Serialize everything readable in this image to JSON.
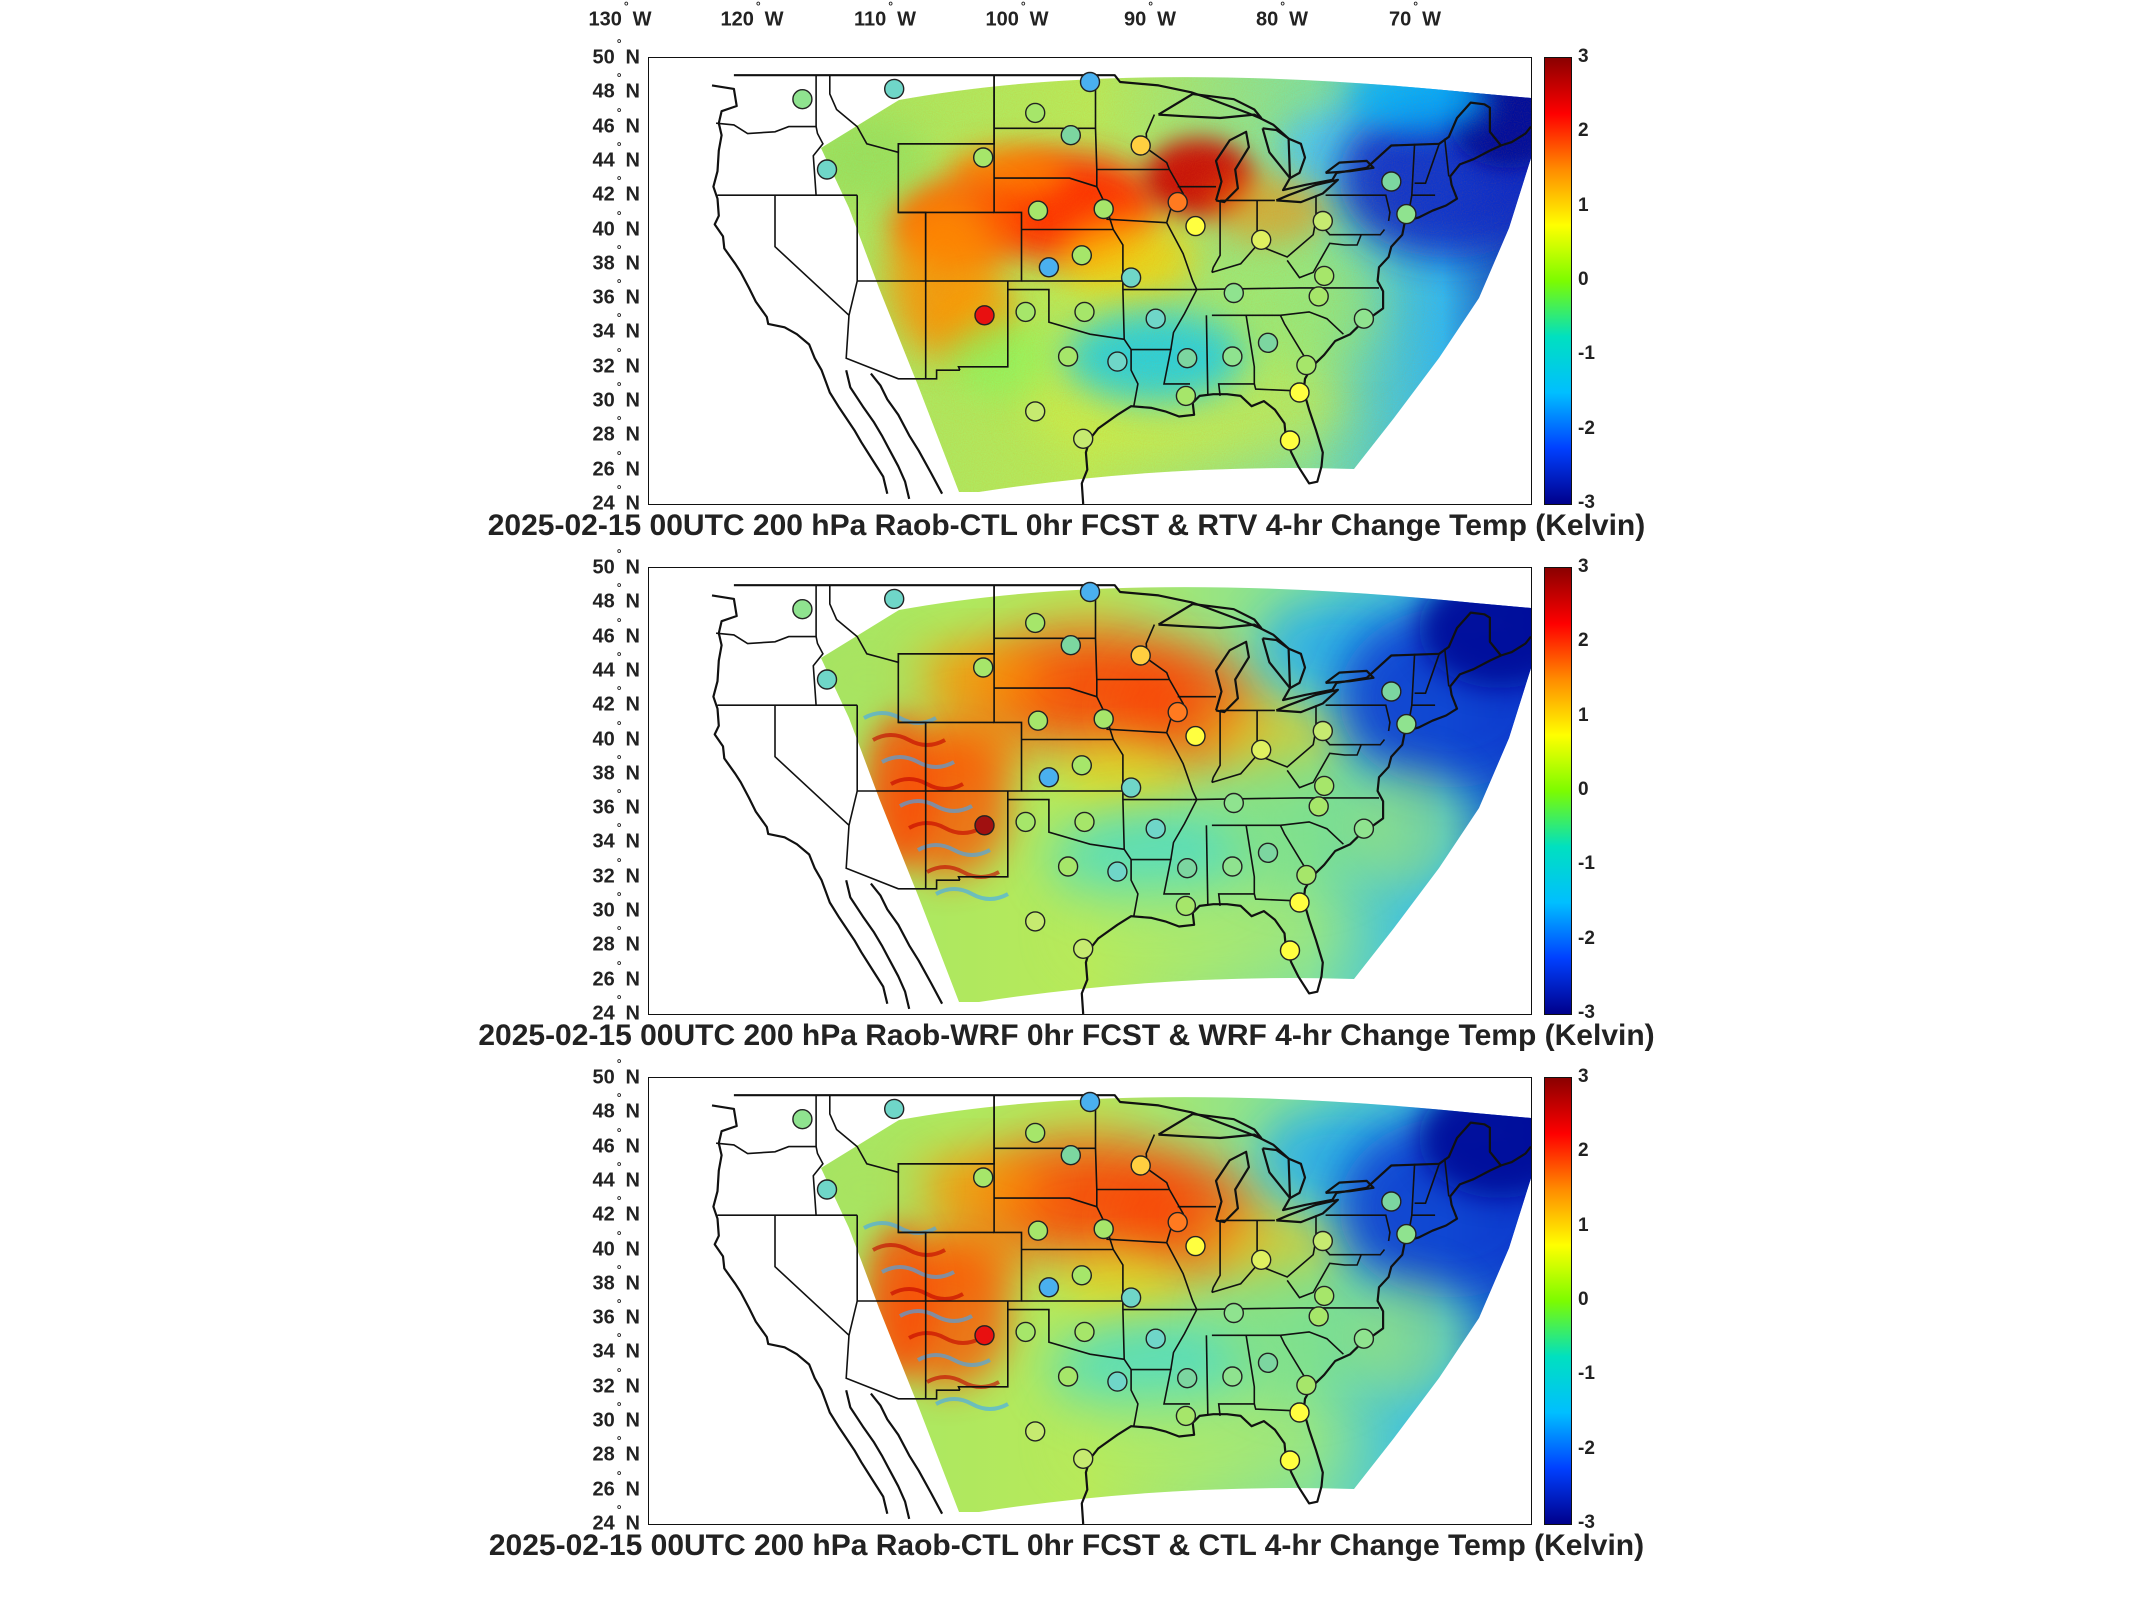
{
  "lon_axis": {
    "labels": [
      {
        "text": "130",
        "unit": "W"
      },
      {
        "text": "120",
        "unit": "W"
      },
      {
        "text": "110",
        "unit": "W"
      },
      {
        "text": "100",
        "unit": "W"
      },
      {
        "text": "90",
        "unit": "W"
      },
      {
        "text": "80",
        "unit": "W"
      },
      {
        "text": "70",
        "unit": "W"
      }
    ]
  },
  "lat_axis": {
    "labels": [
      {
        "text": "50",
        "unit": "N"
      },
      {
        "text": "48",
        "unit": "N"
      },
      {
        "text": "46",
        "unit": "N"
      },
      {
        "text": "44",
        "unit": "N"
      },
      {
        "text": "42",
        "unit": "N"
      },
      {
        "text": "40",
        "unit": "N"
      },
      {
        "text": "38",
        "unit": "N"
      },
      {
        "text": "36",
        "unit": "N"
      },
      {
        "text": "34",
        "unit": "N"
      },
      {
        "text": "32",
        "unit": "N"
      },
      {
        "text": "30",
        "unit": "N"
      },
      {
        "text": "28",
        "unit": "N"
      },
      {
        "text": "26",
        "unit": "N"
      },
      {
        "text": "24",
        "unit": "N"
      }
    ]
  },
  "colorbar": {
    "ticks": [
      "3",
      "2",
      "1",
      "0",
      "-1",
      "-2",
      "-3"
    ],
    "colors": [
      "#8b0000",
      "#ff0000",
      "#ff8c00",
      "#ffff00",
      "#7cfc00",
      "#00e0c0",
      "#00bfff",
      "#0040ff",
      "#00008b"
    ]
  },
  "panels": [
    {
      "title": "2025-02-15 00UTC 200 hPa Raob-CTL 0hr FCST & RTV 4-hr Change Temp (Kelvin)",
      "variant": "noisy",
      "hotspot_color": "#e81010"
    },
    {
      "title": "2025-02-15 00UTC 200 hPa Raob-WRF 0hr FCST & WRF 4-hr Change Temp (Kelvin)",
      "variant": "smooth",
      "hotspot_color": "#a01010"
    },
    {
      "title": "2025-02-15 00UTC 200 hPa Raob-CTL 0hr FCST & CTL 4-hr Change Temp (Kelvin)",
      "variant": "smooth",
      "hotspot_color": "#e81010"
    }
  ],
  "stations": [
    {
      "lon": -118.0,
      "lat": 47.6,
      "color": "#8fe38f"
    },
    {
      "lon": -111.3,
      "lat": 48.2,
      "color": "#6fd6c8"
    },
    {
      "lon": -101.0,
      "lat": 46.8,
      "color": "#a6e66a"
    },
    {
      "lon": -97.0,
      "lat": 48.6,
      "color": "#4ab0ef"
    },
    {
      "lon": -104.8,
      "lat": 44.2,
      "color": "#a6e66a"
    },
    {
      "lon": -98.4,
      "lat": 45.5,
      "color": "#7cd6a0"
    },
    {
      "lon": -93.3,
      "lat": 44.9,
      "color": "#ffcf40"
    },
    {
      "lon": -116.2,
      "lat": 43.5,
      "color": "#6fd6c8"
    },
    {
      "lon": -100.8,
      "lat": 41.1,
      "color": "#a6e66a"
    },
    {
      "lon": -96.0,
      "lat": 41.2,
      "color": "#a6e66a"
    },
    {
      "lon": -90.6,
      "lat": 41.6,
      "color": "#ff7a20"
    },
    {
      "lon": -89.3,
      "lat": 40.2,
      "color": "#ffff40"
    },
    {
      "lon": -84.5,
      "lat": 39.4,
      "color": "#dff060"
    },
    {
      "lon": -80.0,
      "lat": 40.5,
      "color": "#c6ea70"
    },
    {
      "lon": -75.0,
      "lat": 42.8,
      "color": "#7cd6a0"
    },
    {
      "lon": -73.9,
      "lat": 40.9,
      "color": "#8fe38f"
    },
    {
      "lon": -97.6,
      "lat": 38.5,
      "color": "#a6e66a"
    },
    {
      "lon": -100.0,
      "lat": 37.8,
      "color": "#4ab0ef"
    },
    {
      "lon": -104.7,
      "lat": 35.0,
      "color": "#e81010"
    },
    {
      "lon": -101.7,
      "lat": 35.2,
      "color": "#a6e66a"
    },
    {
      "lon": -97.4,
      "lat": 35.2,
      "color": "#a6e66a"
    },
    {
      "lon": -94.0,
      "lat": 37.2,
      "color": "#6fd6c8"
    },
    {
      "lon": -92.2,
      "lat": 34.8,
      "color": "#6fd6c8"
    },
    {
      "lon": -86.5,
      "lat": 36.3,
      "color": "#8fe38f"
    },
    {
      "lon": -79.9,
      "lat": 37.3,
      "color": "#a6e66a"
    },
    {
      "lon": -80.3,
      "lat": 36.1,
      "color": "#a6e66a"
    },
    {
      "lon": -77.0,
      "lat": 34.8,
      "color": "#8fe38f"
    },
    {
      "lon": -98.6,
      "lat": 32.6,
      "color": "#a6e66a"
    },
    {
      "lon": -95.0,
      "lat": 32.3,
      "color": "#6fd6c8"
    },
    {
      "lon": -89.9,
      "lat": 32.5,
      "color": "#7cd6a0"
    },
    {
      "lon": -86.6,
      "lat": 32.6,
      "color": "#8fe38f"
    },
    {
      "lon": -84.0,
      "lat": 33.4,
      "color": "#7cd6a0"
    },
    {
      "lon": -81.2,
      "lat": 32.1,
      "color": "#a6e66a"
    },
    {
      "lon": -81.7,
      "lat": 30.5,
      "color": "#ffff40"
    },
    {
      "lon": -90.0,
      "lat": 30.3,
      "color": "#a6e66a"
    },
    {
      "lon": -101.0,
      "lat": 29.4,
      "color": "#c6ea70"
    },
    {
      "lon": -97.5,
      "lat": 27.8,
      "color": "#c6ea70"
    },
    {
      "lon": -82.4,
      "lat": 27.7,
      "color": "#ffff40"
    }
  ]
}
